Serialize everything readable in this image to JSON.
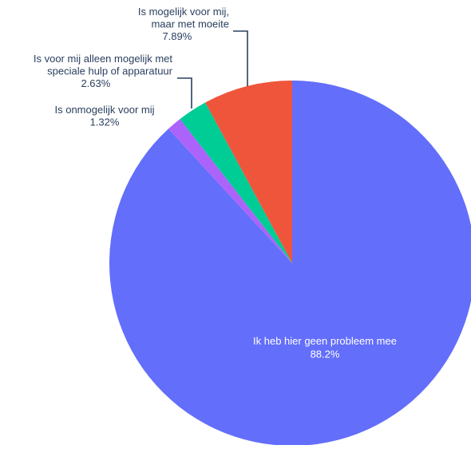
{
  "chart_data": {
    "type": "pie",
    "title": "",
    "slices": [
      {
        "label": "Ik heb hier geen probleem mee",
        "label_lines": [
          "Ik heb hier geen probleem mee"
        ],
        "value": 88.2,
        "value_label": "88.2%",
        "color": "#636efa",
        "label_position": "inside"
      },
      {
        "label": "Is onmogelijk voor mij",
        "label_lines": [
          "Is onmogelijk voor mij"
        ],
        "value": 1.32,
        "value_label": "1.32%",
        "color": "#ab63fa",
        "label_position": "outside"
      },
      {
        "label": "Is voor mij alleen mogelijk met speciale hulp of apparatuur",
        "label_lines": [
          "Is voor mij alleen mogelijk met",
          "speciale hulp of apparatuur"
        ],
        "value": 2.63,
        "value_label": "2.63%",
        "color": "#00cc96",
        "label_position": "outside"
      },
      {
        "label": "Is mogelijk voor mij, maar met moeite",
        "label_lines": [
          "Is mogelijk voor mij,",
          "maar met moeite"
        ],
        "value": 7.89,
        "value_label": "7.89%",
        "color": "#ef553b",
        "label_position": "outside"
      }
    ],
    "direction": "clockwise",
    "start": "top",
    "legend": "none",
    "inside_text_color": "#ffffff",
    "outside_text_color": "#2a3f5f"
  }
}
